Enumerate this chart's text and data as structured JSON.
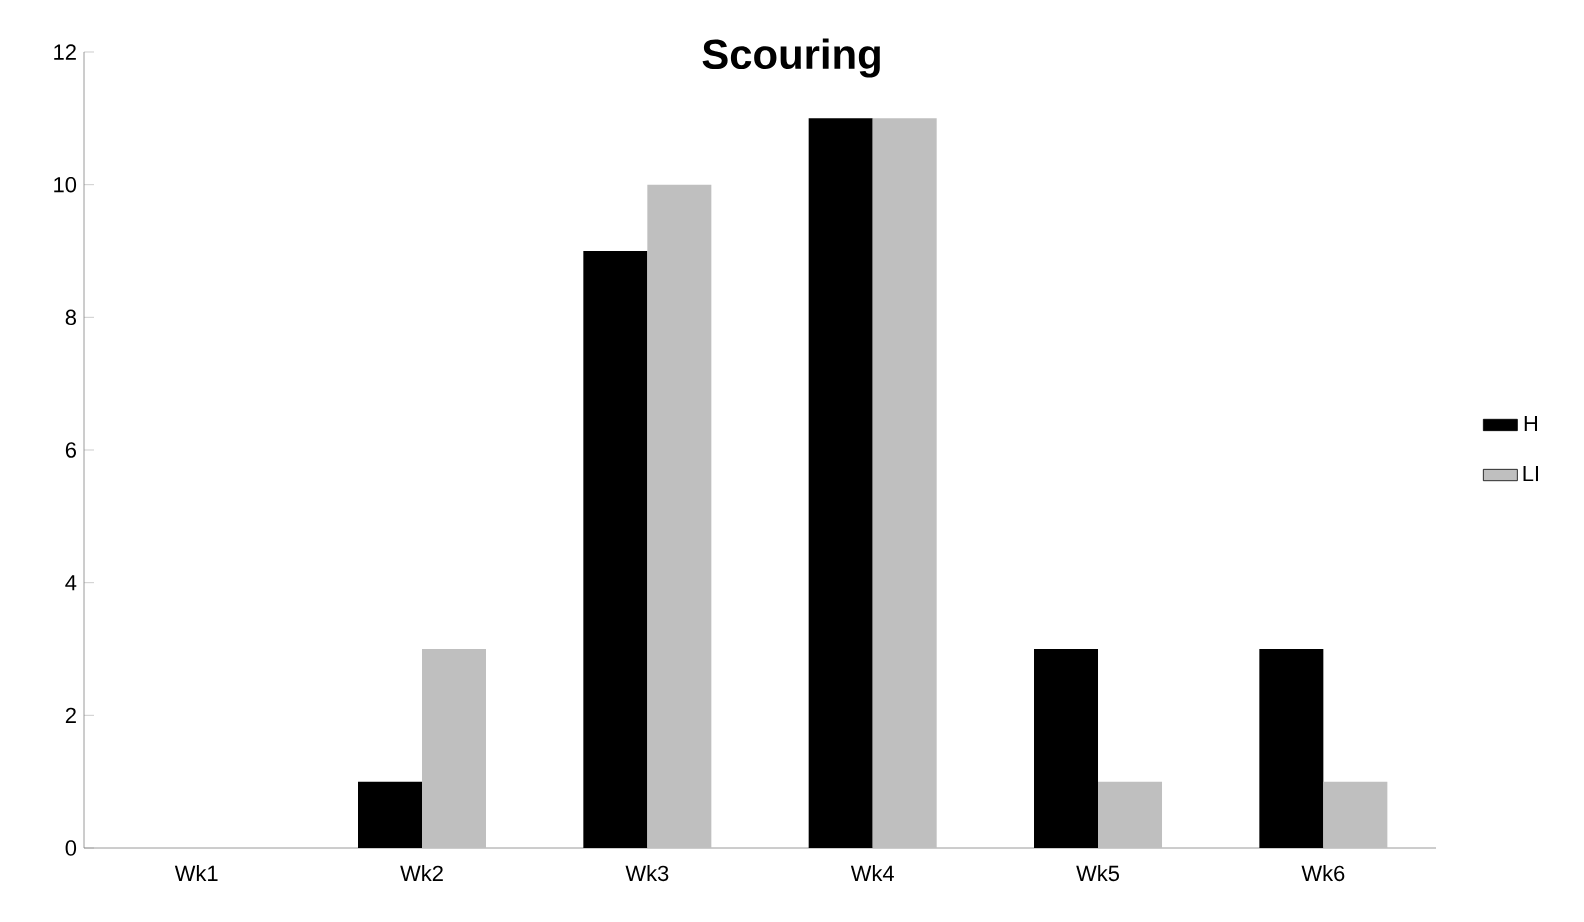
{
  "chart_data": {
    "type": "bar",
    "title": "Scouring",
    "categories": [
      "Wk1",
      "Wk2",
      "Wk3",
      "Wk4",
      "Wk5",
      "Wk6"
    ],
    "series": [
      {
        "name": "H",
        "color": "#000000",
        "values": [
          0,
          1,
          9,
          11,
          3,
          3
        ]
      },
      {
        "name": "LI",
        "color": "#bfbfbf",
        "values": [
          0,
          3,
          10,
          11,
          1,
          1
        ]
      }
    ],
    "ylim": [
      0,
      12
    ],
    "yticks": [
      0,
      2,
      4,
      6,
      8,
      10,
      12
    ],
    "grid": false,
    "legend": "right"
  }
}
